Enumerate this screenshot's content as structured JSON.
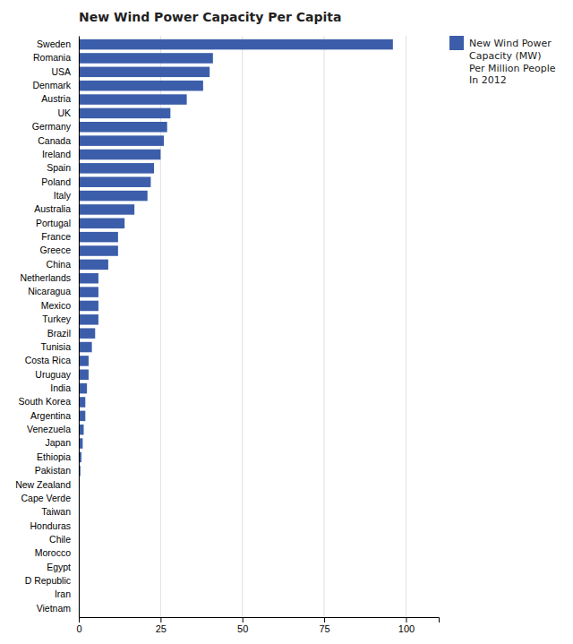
{
  "chart_data": {
    "type": "bar",
    "orientation": "horizontal",
    "title": "New Wind Power Capacity Per Capita",
    "categories": [
      "Sweden",
      "Romania",
      "USA",
      "Denmark",
      "Austria",
      "UK",
      "Germany",
      "Canada",
      "Ireland",
      "Spain",
      "Poland",
      "Italy",
      "Australia",
      "Portugal",
      "France",
      "Greece",
      "China",
      "Netherlands",
      "Nicaragua",
      "Mexico",
      "Turkey",
      "Brazil",
      "Tunisia",
      "Costa Rica",
      "Uruguay",
      "India",
      "South Korea",
      "Argentina",
      "Venezuela",
      "Japan",
      "Ethiopia",
      "Pakistan",
      "New Zealand",
      "Cape Verde",
      "Taiwan",
      "Honduras",
      "Chile",
      "Morocco",
      "Egypt",
      "D Republic",
      "Iran",
      "Vietnam"
    ],
    "series": [
      {
        "name": "New Wind Power\nCapacity (MW)\nPer Million People\nIn 2012",
        "color": "#3C5EAA",
        "values": [
          96,
          41,
          40,
          38,
          33,
          28,
          27,
          26,
          25,
          23,
          22,
          21,
          17,
          14,
          12,
          12,
          9,
          6,
          6,
          6,
          6,
          5,
          4,
          3,
          3,
          2.5,
          2,
          2,
          1.5,
          1.2,
          0.8,
          0.5,
          0.3,
          0.2,
          0.2,
          0.15,
          0.1,
          0.1,
          0.08,
          0.07,
          0.05,
          0.02
        ]
      }
    ],
    "xlim": [
      0,
      110
    ],
    "xticks": [
      0,
      25,
      50,
      75,
      100
    ],
    "grid": true,
    "legend": "upper right"
  }
}
